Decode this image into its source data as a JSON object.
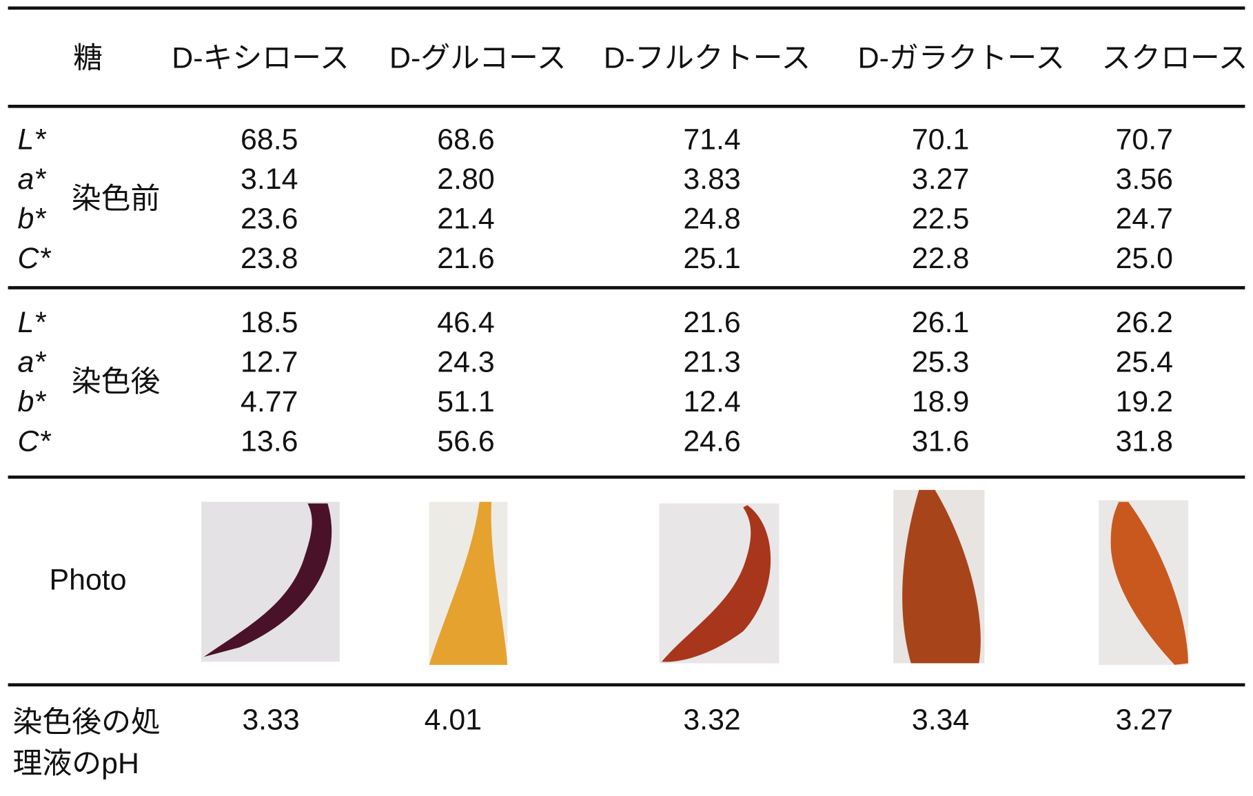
{
  "table": {
    "header": [
      "糖",
      "D-キシロース",
      "D-グルコース",
      "D-フルクトース",
      "D-ガラクトース",
      "スクロース"
    ],
    "groups": [
      {
        "label": "染色前",
        "rows": [
          {
            "param": "L*",
            "values": [
              "68.5",
              "68.6",
              "71.4",
              "70.1",
              "70.7"
            ]
          },
          {
            "param": "a*",
            "values": [
              "3.14",
              "2.80",
              "3.83",
              "3.27",
              "3.56"
            ]
          },
          {
            "param": "b*",
            "values": [
              "23.6",
              "21.4",
              "24.8",
              "22.5",
              "24.7"
            ]
          },
          {
            "param": "C*",
            "values": [
              "23.8",
              "21.6",
              "25.1",
              "22.8",
              "25.0"
            ]
          }
        ]
      },
      {
        "label": "染色後",
        "rows": [
          {
            "param": "L*",
            "values": [
              "18.5",
              "46.4",
              "21.6",
              "26.1",
              "26.2"
            ]
          },
          {
            "param": "a*",
            "values": [
              "12.7",
              "24.3",
              "21.3",
              "25.3",
              "25.4"
            ]
          },
          {
            "param": "b*",
            "values": [
              "4.77",
              "51.1",
              "12.4",
              "18.9",
              "19.2"
            ]
          },
          {
            "param": "C*",
            "values": [
              "13.6",
              "56.6",
              "24.6",
              "31.6",
              "31.8"
            ]
          }
        ]
      }
    ],
    "photo_label": "Photo",
    "ph": {
      "label": [
        "染色後の処",
        "理液のpH"
      ],
      "values": [
        "3.33",
        "4.01",
        "3.32",
        "3.34",
        "3.27"
      ]
    }
  }
}
